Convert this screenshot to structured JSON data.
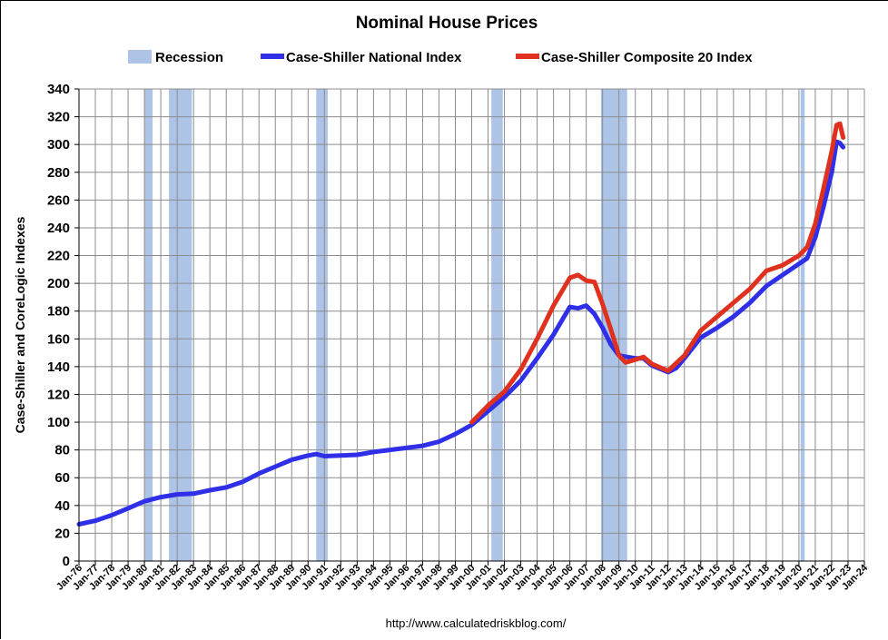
{
  "chart_data": {
    "type": "line",
    "title": "Nominal House Prices",
    "ylabel": "Case-Shiller and CoreLogic Indexes",
    "xlabel": "",
    "source": "http://www.calculatedriskblog.com/",
    "ylim": [
      0,
      340
    ],
    "yticks": [
      0,
      20,
      40,
      60,
      80,
      100,
      120,
      140,
      160,
      180,
      200,
      220,
      240,
      260,
      280,
      300,
      320,
      340
    ],
    "xlim": [
      1976.0,
      2024.0
    ],
    "xtick_labels": [
      "Jan-76",
      "Jan-77",
      "Jan-78",
      "Jan-79",
      "Jan-80",
      "Jan-81",
      "Jan-82",
      "Jan-83",
      "Jan-84",
      "Jan-85",
      "Jan-86",
      "Jan-87",
      "Jan-88",
      "Jan-89",
      "Jan-90",
      "Jan-91",
      "Jan-92",
      "Jan-93",
      "Jan-94",
      "Jan-95",
      "Jan-96",
      "Jan-97",
      "Jan-98",
      "Jan-99",
      "Jan-00",
      "Jan-01",
      "Jan-02",
      "Jan-03",
      "Jan-04",
      "Jan-05",
      "Jan-06",
      "Jan-07",
      "Jan-08",
      "Jan-09",
      "Jan-10",
      "Jan-11",
      "Jan-12",
      "Jan-13",
      "Jan-14",
      "Jan-15",
      "Jan-16",
      "Jan-17",
      "Jan-18",
      "Jan-19",
      "Jan-20",
      "Jan-21",
      "Jan-22",
      "Jan-23",
      "Jan-24"
    ],
    "grid": true,
    "legend": {
      "placement": "top",
      "entries": [
        {
          "name": "Recession",
          "type": "bar",
          "color": "#adc4e7"
        },
        {
          "name": "Case-Shiller National Index",
          "type": "line",
          "color": "#2f2fe8"
        },
        {
          "name": "Case-Shiller Composite 20 Index",
          "type": "line",
          "color": "#e0311e"
        }
      ]
    },
    "recessions": [
      {
        "start": 1980.0,
        "end": 1980.5
      },
      {
        "start": 1981.5,
        "end": 1982.9
      },
      {
        "start": 1990.5,
        "end": 1991.2
      },
      {
        "start": 2001.2,
        "end": 2001.9
      },
      {
        "start": 2007.9,
        "end": 2009.5
      },
      {
        "start": 2020.1,
        "end": 2020.35
      }
    ],
    "series": [
      {
        "name": "Case-Shiller National Index",
        "color": "#2f2fe8",
        "x": [
          1976.0,
          1977.0,
          1978.0,
          1979.0,
          1980.0,
          1981.0,
          1982.0,
          1983.0,
          1984.0,
          1985.0,
          1986.0,
          1987.0,
          1988.0,
          1989.0,
          1990.0,
          1990.5,
          1991.0,
          1992.0,
          1993.0,
          1994.0,
          1995.0,
          1996.0,
          1997.0,
          1998.0,
          1999.0,
          2000.0,
          2001.0,
          2002.0,
          2003.0,
          2004.0,
          2005.0,
          2006.0,
          2006.5,
          2007.0,
          2007.5,
          2008.0,
          2008.5,
          2009.0,
          2009.5,
          2010.0,
          2010.5,
          2011.0,
          2012.0,
          2012.5,
          2013.0,
          2014.0,
          2015.0,
          2016.0,
          2017.0,
          2018.0,
          2019.0,
          2020.0,
          2020.5,
          2021.0,
          2021.5,
          2022.0,
          2022.3,
          2022.5,
          2022.7
        ],
        "y": [
          26.5,
          29,
          33,
          38,
          43,
          46,
          48,
          48.5,
          51,
          53,
          57,
          63,
          68,
          73,
          76,
          77,
          75.5,
          76,
          76.5,
          78.5,
          80,
          81.5,
          83,
          86,
          91.5,
          98,
          108,
          118,
          130,
          146,
          163,
          183,
          182,
          184,
          178,
          168,
          156,
          148,
          147,
          146,
          146,
          141,
          136,
          139,
          146,
          161,
          168,
          176,
          186,
          198,
          206,
          214,
          218,
          233,
          255,
          280,
          302,
          301,
          298
        ]
      },
      {
        "name": "Case-Shiller Composite 20 Index",
        "color": "#e0311e",
        "x": [
          2000.0,
          2001.0,
          2002.0,
          2003.0,
          2004.0,
          2005.0,
          2006.0,
          2006.5,
          2007.0,
          2007.5,
          2008.0,
          2008.5,
          2009.0,
          2009.4,
          2010.0,
          2010.5,
          2011.0,
          2012.0,
          2013.0,
          2014.0,
          2015.0,
          2016.0,
          2017.0,
          2018.0,
          2019.0,
          2020.0,
          2020.5,
          2021.0,
          2021.5,
          2022.0,
          2022.3,
          2022.5,
          2022.7
        ],
        "y": [
          100,
          112,
          122,
          138,
          160,
          184,
          204,
          206,
          202,
          201,
          185,
          167,
          148,
          143,
          145,
          147,
          142,
          137,
          148,
          166,
          176,
          186,
          196,
          209,
          213,
          220,
          226,
          243,
          268,
          295,
          314,
          315,
          305
        ]
      }
    ]
  }
}
